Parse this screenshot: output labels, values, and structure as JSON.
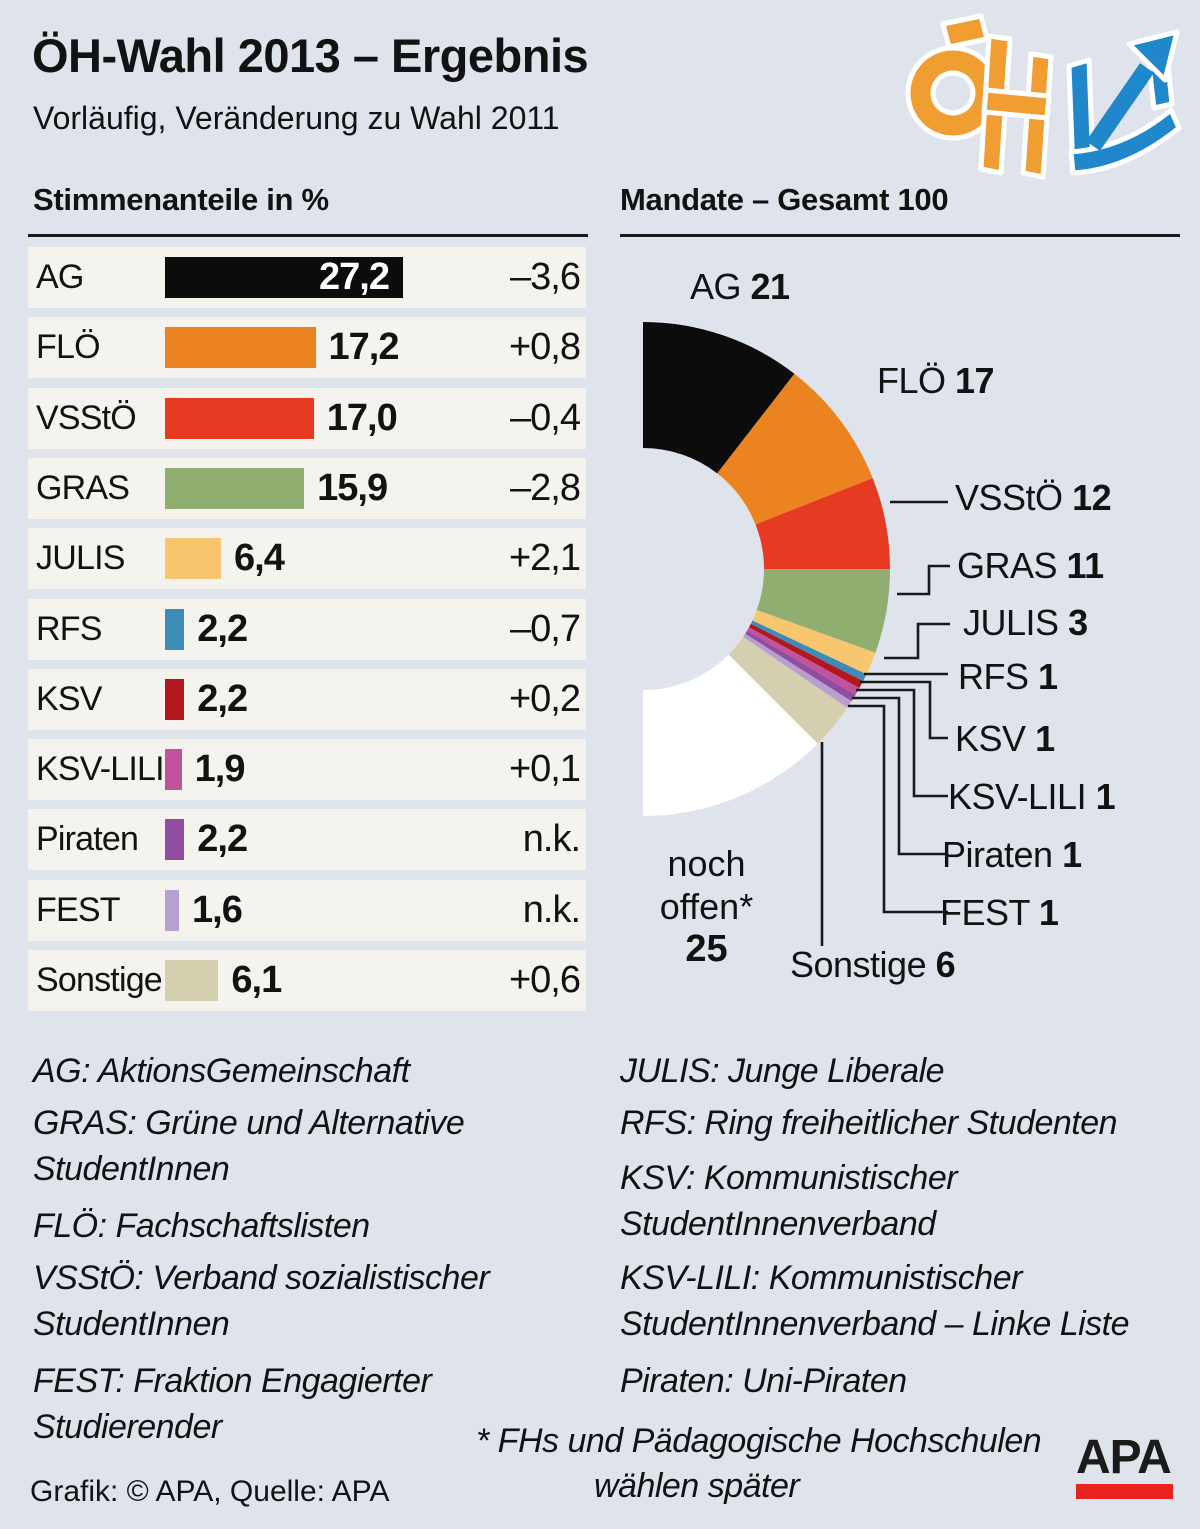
{
  "page": {
    "title": "ÖH-Wahl 2013 – Ergebnis",
    "subtitle": "Vorläufig, Veränderung zu Wahl 2011"
  },
  "sections": {
    "bars_heading": "Stimmenanteile in %",
    "donut_heading": "Mandate – Gesamt 100"
  },
  "chart_data": [
    {
      "type": "bar",
      "title": "Stimmenanteile in %",
      "orientation": "horizontal",
      "categories": [
        "AG",
        "FLÖ",
        "VSStÖ",
        "GRAS",
        "JULIS",
        "RFS",
        "KSV",
        "KSV-LILI",
        "Piraten",
        "FEST",
        "Sonstige"
      ],
      "values": [
        27.2,
        17.2,
        17.0,
        15.9,
        6.4,
        2.2,
        2.2,
        1.9,
        2.2,
        1.6,
        6.1
      ],
      "value_labels": [
        "27,2",
        "17,2",
        "17,0",
        "15,9",
        "6,4",
        "2,2",
        "2,2",
        "1,9",
        "2,2",
        "1,6",
        "6,1"
      ],
      "change_labels": [
        "–3,6",
        "+0,8",
        "–0,4",
        "–2,8",
        "+2,1",
        "–0,7",
        "+0,2",
        "+0,1",
        "n.k.",
        "n.k.",
        "+0,6"
      ],
      "colors": [
        "#0c0c0c",
        "#ec8321",
        "#e63b22",
        "#91ae71",
        "#f7c66f",
        "#3e8bb8",
        "#b2171d",
        "#c1539e",
        "#8f4e9f",
        "#b7a0d0",
        "#d4cfae"
      ],
      "xlabel": "Stimmenanteil in %",
      "xlim": [
        0,
        30
      ],
      "grid": false
    },
    {
      "type": "pie",
      "variant": "half-donut",
      "title": "Mandate – Gesamt 100",
      "total": 100,
      "categories": [
        "AG",
        "FLÖ",
        "VSStÖ",
        "GRAS",
        "JULIS",
        "RFS",
        "KSV",
        "KSV-LILI",
        "Piraten",
        "FEST",
        "Sonstige",
        "noch offen*"
      ],
      "values": [
        21,
        17,
        12,
        11,
        3,
        1,
        1,
        1,
        1,
        1,
        6,
        25
      ],
      "colors": [
        "#0c0c0c",
        "#ec8321",
        "#e63b22",
        "#91ae71",
        "#f7c66f",
        "#3e8bb8",
        "#b2171d",
        "#c1539e",
        "#8f4e9f",
        "#b7a0d0",
        "#d4cfae",
        "#ffffff"
      ],
      "layout": "starts at 12 o'clock, clockwise, 100 seats = 180 degrees, legend labels with connector lines on the right"
    }
  ],
  "open_slice": {
    "line1": "noch",
    "line2": "offen*",
    "value": "25"
  },
  "legend": {
    "left": [
      "AG: AktionsGemeinschaft",
      "GRAS: Grüne und Alternative",
      "StudentInnen",
      "FLÖ: Fachschaftslisten",
      "VSStÖ: Verband sozialistischer",
      "StudentInnen",
      "FEST: Fraktion Engagierter",
      "Studierender"
    ],
    "right": [
      "JULIS: Junge Liberale",
      "RFS: Ring freiheitlicher Studenten",
      "KSV: Kommunistischer",
      "StudentInnenverband",
      "KSV-LILI: Kommunistischer",
      "StudentInnenverband – Linke Liste",
      "Piraten: Uni-Piraten"
    ]
  },
  "footnote": {
    "line1": "* FHs und Pädagogische Hochschulen",
    "line2": "wählen später"
  },
  "footer": {
    "credit": "Grafik: © APA, Quelle: APA",
    "apa_logo_text": "APA"
  },
  "brand_colors": {
    "background": "#dfe3ec",
    "row_background": "#f4f3ee",
    "oeh_orange": "#f09d31",
    "oeh_blue": "#2187cb",
    "apa_red": "#e8231e"
  }
}
